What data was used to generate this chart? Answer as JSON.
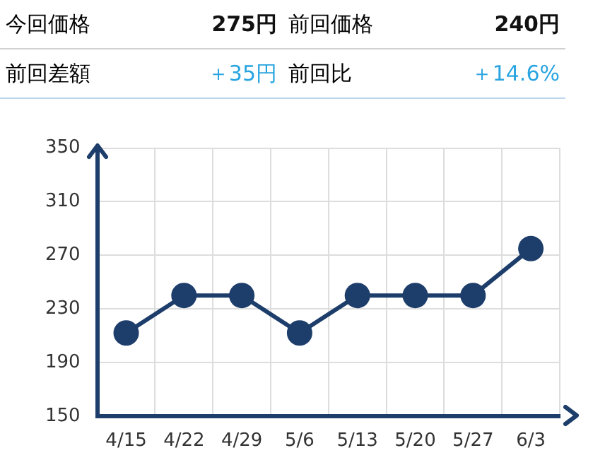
{
  "chart_data": [
    {
      "type": "other",
      "annotations": [
        "今回価格",
        "275円",
        "前回価格",
        "240円",
        "前回差額",
        "＋35円",
        "前回比",
        "＋14.6%"
      ]
    },
    {
      "type": "line",
      "categories": [
        "4/15",
        "4/22",
        "4/29",
        "5/6",
        "5/13",
        "5/20",
        "5/27",
        "6/3"
      ],
      "series": [
        {
          "color": "#1d3d6b",
          "values": [
            212,
            240,
            240,
            212,
            240,
            240,
            240,
            275
          ]
        }
      ],
      "ylim": [
        150,
        350
      ],
      "yticks": [
        150,
        190,
        230,
        270,
        310,
        350
      ],
      "grid": true,
      "legend": false,
      "marker": "circle",
      "line_style": "solid"
    }
  ]
}
